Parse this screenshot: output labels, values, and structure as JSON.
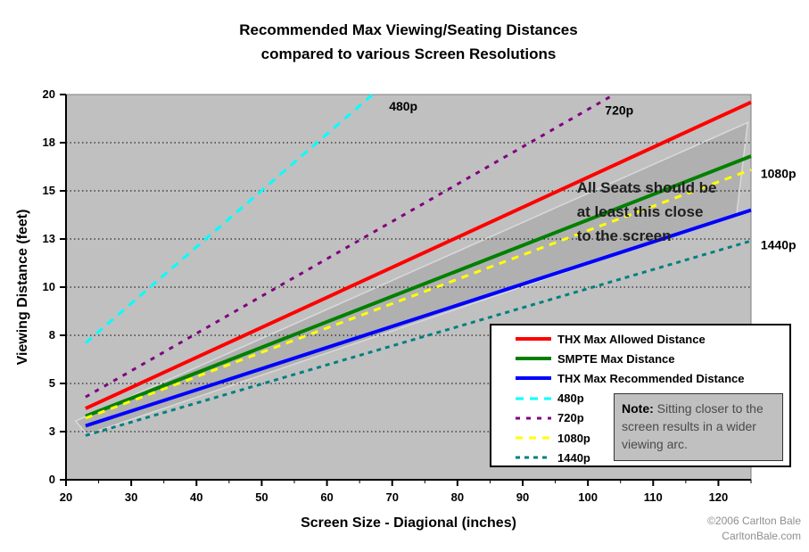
{
  "title": {
    "line1": "Recommended Max Viewing/Seating Distances",
    "line2": "compared to various Screen Resolutions"
  },
  "chart_data": {
    "type": "line",
    "title": "Recommended Max Viewing/Seating Distances compared to various Screen Resolutions",
    "xlabel": "Screen Size - Diagional (inches)",
    "ylabel": "Viewing Distance (feet)",
    "xlim": [
      20,
      125
    ],
    "ylim": [
      0,
      20
    ],
    "plot_background": "#c0c0c0",
    "grid": {
      "horizontal": true,
      "vertical": false,
      "style": "dotted",
      "color": "#000000"
    },
    "x_major_ticks": [
      20,
      30,
      40,
      50,
      60,
      70,
      80,
      90,
      100,
      110,
      120
    ],
    "x_minor_tick_step": 5,
    "y_ticks": [
      {
        "value": 0,
        "label": "0"
      },
      {
        "value": 2.5,
        "label": "3"
      },
      {
        "value": 5,
        "label": "5"
      },
      {
        "value": 7.5,
        "label": "8"
      },
      {
        "value": 10,
        "label": "10"
      },
      {
        "value": 12.5,
        "label": "13"
      },
      {
        "value": 15,
        "label": "15"
      },
      {
        "value": 17.5,
        "label": "18"
      },
      {
        "value": 20,
        "label": "20"
      }
    ],
    "series": [
      {
        "name": "THX Max Allowed Distance",
        "color": "#ff0000",
        "style": "solid",
        "width": 4,
        "x": [
          23,
          125
        ],
        "y": [
          3.7,
          19.6
        ]
      },
      {
        "name": "SMPTE Max Distance",
        "color": "#008000",
        "style": "solid",
        "width": 4,
        "x": [
          23,
          125
        ],
        "y": [
          3.3,
          16.8
        ]
      },
      {
        "name": "THX Max Recommended Distance",
        "color": "#0000ff",
        "style": "solid",
        "width": 4,
        "x": [
          23,
          125
        ],
        "y": [
          2.8,
          14.0
        ]
      },
      {
        "name": "480p",
        "color": "#00ffff",
        "style": "dashed",
        "dash": "9 7",
        "width": 3,
        "x": [
          23,
          67
        ],
        "y": [
          7.1,
          20.0
        ]
      },
      {
        "name": "720p",
        "color": "#800080",
        "style": "dashed",
        "dash": "5 7",
        "width": 3,
        "x": [
          23,
          104
        ],
        "y": [
          4.3,
          20.0
        ]
      },
      {
        "name": "1080p",
        "color": "#ffff00",
        "style": "dashed",
        "dash": "8 7",
        "width": 3,
        "x": [
          23,
          125
        ],
        "y": [
          3.2,
          16.1
        ]
      },
      {
        "name": "1440p",
        "color": "#008080",
        "style": "dashed",
        "dash": "5 5",
        "width": 3,
        "x": [
          23,
          125
        ],
        "y": [
          2.3,
          12.4
        ]
      }
    ],
    "band": {
      "meaning": "All Seats should be at least this close to the screen",
      "fill": "#b0b0b0",
      "stroke": "#d9d9d9",
      "points": [
        [
          21.5,
          3.05
        ],
        [
          124.5,
          18.55
        ],
        [
          122.8,
          13.8
        ],
        [
          23.2,
          2.35
        ]
      ]
    },
    "inline_labels": [
      {
        "text": "480p",
        "x": 71.7,
        "y": 19.4
      },
      {
        "text": "720p",
        "x": 104.8,
        "y": 19.2
      },
      {
        "text": "1080p",
        "x": 129.2,
        "y": 15.9
      },
      {
        "text": "1440p",
        "x": 129.2,
        "y": 12.2
      }
    ],
    "annotation": {
      "lines": [
        "All Seats should be",
        "at least this close",
        "to the screen"
      ],
      "x": 98.3,
      "y": 15.6
    }
  },
  "legend": {
    "items": [
      "THX Max Allowed Distance",
      "SMPTE Max Distance",
      "THX Max Recommended Distance",
      "480p",
      "720p",
      "1080p",
      "1440p"
    ]
  },
  "note": {
    "prefix": "Note:",
    "body": "Sitting closer to the screen results in a wider viewing arc."
  },
  "credit": {
    "line1": "©2006 Carlton Bale",
    "line2": "CarltonBale.com"
  }
}
